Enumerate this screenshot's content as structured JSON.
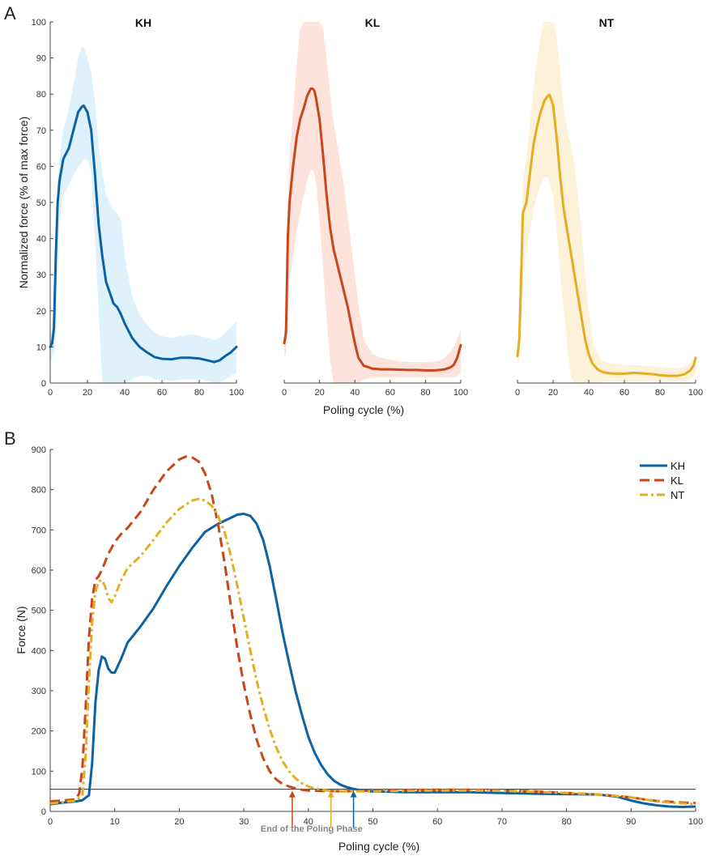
{
  "colors": {
    "KH": "#0b63a6",
    "KL": "#c9461a",
    "NT": "#e3ae23",
    "KH_band": "#dff2fb",
    "KL_band": "#fde3db",
    "NT_band": "#fcf2da"
  },
  "chart_data": [
    {
      "type": "line",
      "panel_label": "A",
      "shared_ylabel": "Normalized force (% of max force)",
      "shared_xlabel": "Poling cycle (%)",
      "xlim": [
        0,
        100
      ],
      "ylim": [
        0,
        100
      ],
      "xticks": [
        "0",
        "20",
        "40",
        "60",
        "80",
        "100"
      ],
      "yticks": [
        "0",
        "10",
        "20",
        "30",
        "40",
        "50",
        "60",
        "70",
        "80",
        "90",
        "100"
      ],
      "subplots": [
        {
          "title": "KH",
          "series": "KH",
          "x": [
            0,
            1,
            2,
            3,
            4,
            5,
            7,
            10,
            13,
            15,
            17,
            18,
            20,
            22,
            24,
            26,
            28,
            30,
            32,
            34,
            36,
            38,
            40,
            44,
            48,
            52,
            56,
            60,
            65,
            70,
            75,
            80,
            85,
            88,
            91,
            94,
            97,
            100
          ],
          "mean": [
            10,
            11,
            15,
            35,
            50,
            56,
            62,
            65,
            71,
            75,
            76.5,
            76.8,
            75,
            70,
            58,
            44,
            35,
            28,
            25,
            22,
            21,
            19,
            16.5,
            12.5,
            10,
            8.5,
            7.2,
            6.7,
            6.6,
            7,
            7,
            6.8,
            6.2,
            5.8,
            6.3,
            7.5,
            8.5,
            10
          ],
          "upper": [
            13,
            15,
            22,
            42,
            56,
            62,
            70,
            76,
            84,
            90,
            93,
            93,
            90,
            86,
            78,
            66,
            58,
            52,
            50,
            48,
            47,
            45,
            35,
            24,
            19,
            16,
            14,
            13,
            12.5,
            13,
            13.5,
            13,
            12.5,
            12,
            12.5,
            14,
            15.5,
            17
          ],
          "lower": [
            6,
            7,
            8,
            14,
            30,
            44,
            52,
            55,
            58,
            60,
            61,
            62,
            62,
            58,
            40,
            20,
            0,
            0,
            0,
            0,
            0,
            0,
            0,
            1,
            2,
            2,
            1,
            1,
            0.5,
            1,
            1,
            1,
            0.5,
            0,
            0,
            1,
            2,
            3
          ]
        },
        {
          "title": "KL",
          "series": "KL",
          "x": [
            0,
            1,
            2,
            3,
            5,
            7,
            9,
            11,
            13,
            15,
            16,
            17,
            18,
            20,
            22,
            24,
            26,
            28,
            30,
            32,
            34,
            36,
            38,
            40,
            42,
            45,
            50,
            55,
            60,
            65,
            70,
            75,
            80,
            85,
            88,
            91,
            94,
            96,
            98,
            100
          ],
          "mean": [
            11,
            14,
            40,
            50,
            60,
            68,
            73,
            76,
            79.5,
            81.5,
            81.5,
            81,
            79,
            73,
            63,
            52,
            43,
            37,
            33,
            29,
            25,
            21,
            16,
            11,
            7,
            4.8,
            4,
            3.8,
            3.8,
            3.7,
            3.6,
            3.6,
            3.5,
            3.5,
            3.6,
            3.8,
            4.3,
            5,
            7,
            10.5
          ],
          "upper": [
            14,
            18,
            50,
            62,
            75,
            88,
            98,
            100,
            100,
            100,
            100,
            100,
            100,
            100,
            98,
            90,
            80,
            72,
            66,
            60,
            54,
            46,
            38,
            30,
            22,
            12,
            8,
            7,
            6.5,
            6,
            5.8,
            5.8,
            5.8,
            6,
            6.2,
            7,
            8.5,
            10,
            12,
            15
          ],
          "lower": [
            7,
            8,
            18,
            28,
            35,
            42,
            47,
            52,
            56,
            59,
            59,
            58,
            55,
            45,
            32,
            18,
            6,
            0,
            0,
            0,
            0,
            0,
            0,
            0,
            0,
            1,
            1.5,
            1.5,
            1.5,
            1.5,
            1.5,
            1.5,
            1.5,
            1.5,
            1.5,
            1.5,
            1.5,
            1.5,
            2,
            3
          ]
        },
        {
          "title": "NT",
          "series": "NT",
          "x": [
            0,
            1,
            2,
            3,
            5,
            7,
            9,
            11,
            13,
            15,
            17,
            18,
            20,
            22,
            24,
            26,
            28,
            30,
            32,
            34,
            36,
            38,
            40,
            42,
            45,
            48,
            52,
            56,
            60,
            65,
            70,
            75,
            80,
            85,
            90,
            94,
            97,
            99,
            100
          ],
          "mean": [
            7.5,
            12,
            28,
            47,
            50,
            58,
            66,
            71,
            75,
            78,
            79.5,
            79.8,
            77,
            68,
            57,
            48,
            42,
            36,
            30,
            24,
            18,
            12,
            8,
            5.5,
            3.8,
            3,
            2.7,
            2.6,
            2.6,
            2.8,
            2.7,
            2.5,
            2.2,
            2,
            2,
            2.5,
            3.5,
            5,
            7
          ],
          "upper": [
            10,
            15,
            35,
            56,
            62,
            72,
            82,
            90,
            96,
            100,
            100,
            100,
            100,
            96,
            86,
            76,
            70,
            66,
            60,
            52,
            42,
            30,
            20,
            12,
            8,
            6,
            5.5,
            5.2,
            5,
            5,
            4.8,
            4.6,
            4.4,
            4.2,
            4.2,
            4.5,
            5.5,
            6.5,
            8
          ],
          "lower": [
            5,
            6,
            14,
            30,
            36,
            42,
            48,
            52,
            55,
            57,
            57,
            56,
            52,
            42,
            30,
            20,
            10,
            2,
            0,
            0,
            0,
            0,
            0,
            0,
            0,
            0.5,
            0.5,
            0.5,
            0.5,
            0.5,
            0.5,
            0.5,
            0.5,
            0.5,
            0.5,
            0.5,
            1,
            2,
            3
          ]
        }
      ]
    },
    {
      "type": "line",
      "panel_label": "B",
      "xlabel": "Poling cycle (%)",
      "ylabel": "Force (N)",
      "xlim": [
        0,
        100
      ],
      "ylim": [
        0,
        900
      ],
      "xticks": [
        "0",
        "10",
        "20",
        "30",
        "40",
        "50",
        "60",
        "70",
        "80",
        "90",
        "100"
      ],
      "yticks": [
        "0",
        "100",
        "200",
        "300",
        "400",
        "500",
        "600",
        "700",
        "800",
        "900"
      ],
      "threshold": 55,
      "legend": [
        "KH",
        "KL",
        "NT"
      ],
      "legend_position": "top-right",
      "annotation": "End of the Poling Phase",
      "end_markers": [
        {
          "series": "KL",
          "x": 37.5
        },
        {
          "series": "NT",
          "x": 43.5
        },
        {
          "series": "KH",
          "x": 47
        }
      ],
      "series": [
        {
          "name": "KH",
          "style": "solid",
          "x": [
            0,
            2,
            4,
            5,
            6,
            6.5,
            7,
            7.5,
            8,
            8.5,
            9,
            9.5,
            10,
            11,
            12,
            14,
            16,
            18,
            20,
            22,
            24,
            26,
            28,
            29,
            30,
            31,
            32,
            33,
            34,
            35,
            36,
            37,
            38,
            39,
            40,
            41,
            42,
            43,
            44,
            45,
            46,
            47,
            48,
            50,
            55,
            60,
            65,
            70,
            75,
            80,
            85,
            88,
            90,
            92,
            94,
            96,
            98,
            100
          ],
          "y": [
            18,
            22,
            25,
            28,
            40,
            120,
            270,
            350,
            385,
            380,
            355,
            345,
            345,
            380,
            420,
            460,
            505,
            560,
            610,
            655,
            695,
            715,
            730,
            738,
            740,
            735,
            715,
            675,
            610,
            530,
            445,
            370,
            300,
            240,
            185,
            145,
            115,
            92,
            76,
            66,
            60,
            56,
            53,
            50,
            48,
            48,
            48,
            46,
            44,
            43,
            42,
            36,
            27,
            20,
            15,
            12,
            11,
            12
          ]
        },
        {
          "name": "KL",
          "style": "dashed",
          "x": [
            0,
            2,
            4,
            4.5,
            5,
            5.5,
            6,
            6.5,
            7,
            7.5,
            8,
            9,
            10,
            11,
            12,
            14,
            16,
            18,
            20,
            21,
            22,
            23,
            24,
            25,
            26,
            27,
            28,
            29,
            30,
            31,
            32,
            33,
            34,
            35,
            36,
            37,
            38,
            39,
            40,
            42,
            45,
            50,
            55,
            60,
            65,
            70,
            75,
            80,
            85,
            90,
            92,
            94,
            96,
            98,
            100
          ],
          "y": [
            25,
            27,
            30,
            45,
            110,
            260,
            430,
            530,
            575,
            585,
            600,
            640,
            670,
            690,
            705,
            745,
            800,
            845,
            875,
            882,
            880,
            870,
            840,
            790,
            715,
            620,
            510,
            405,
            315,
            240,
            178,
            132,
            100,
            80,
            68,
            62,
            57,
            54,
            52,
            51,
            50,
            52,
            53,
            54,
            54,
            52,
            50,
            46,
            42,
            35,
            30,
            26,
            24,
            22,
            21
          ]
        },
        {
          "name": "NT",
          "style": "dashdot",
          "x": [
            0,
            2,
            4,
            5,
            5.5,
            6,
            6.5,
            7,
            7.5,
            8,
            8.5,
            9,
            9.5,
            10,
            11,
            12,
            14,
            16,
            18,
            20,
            22,
            23,
            24,
            25,
            26,
            27,
            28,
            29,
            30,
            31,
            32,
            33,
            34,
            35,
            36,
            37,
            38,
            39,
            40,
            41,
            42,
            43,
            44,
            45,
            48,
            50,
            55,
            60,
            65,
            70,
            75,
            80,
            85,
            90,
            92,
            94,
            96,
            98,
            100
          ],
          "y": [
            20,
            23,
            27,
            40,
            140,
            320,
            470,
            545,
            572,
            575,
            560,
            530,
            520,
            535,
            575,
            605,
            635,
            675,
            718,
            752,
            773,
            777,
            773,
            760,
            735,
            695,
            635,
            560,
            480,
            400,
            325,
            260,
            205,
            160,
            125,
            100,
            82,
            70,
            62,
            57,
            54,
            52,
            51,
            50,
            50,
            50,
            51,
            52,
            52,
            51,
            49,
            46,
            42,
            35,
            30,
            25,
            22,
            20,
            18
          ]
        }
      ]
    }
  ]
}
